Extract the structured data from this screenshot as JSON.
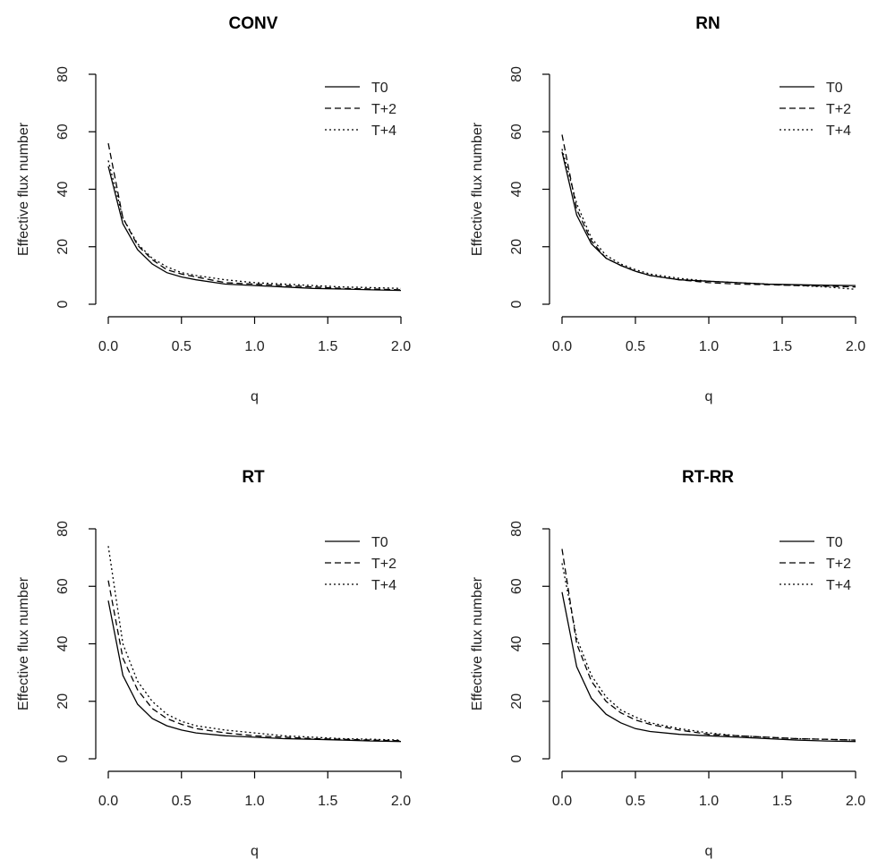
{
  "chart_data": [
    {
      "type": "line",
      "title": "CONV",
      "xlabel": "q",
      "ylabel": "Effective flux number",
      "xlim": [
        0,
        2
      ],
      "ylim": [
        0,
        80
      ],
      "xticks": [
        "0.0",
        "0.5",
        "1.0",
        "1.5",
        "2.0"
      ],
      "yticks": [
        "0",
        "20",
        "40",
        "60",
        "80"
      ],
      "legend": "top-right",
      "x": [
        0,
        0.1,
        0.2,
        0.3,
        0.4,
        0.5,
        0.6,
        0.8,
        1.0,
        1.2,
        1.4,
        1.6,
        1.8,
        2.0
      ],
      "series": [
        {
          "name": "T0",
          "style": "solid",
          "values": [
            48,
            28,
            19,
            14,
            11,
            9.5,
            8.5,
            7,
            6.5,
            6,
            5.5,
            5.3,
            5,
            4.8
          ]
        },
        {
          "name": "T+2",
          "style": "dashed",
          "values": [
            56,
            30,
            20.5,
            15.5,
            12,
            10.5,
            9.5,
            7.5,
            7,
            6.5,
            6,
            5.5,
            5.3,
            5
          ]
        },
        {
          "name": "T+4",
          "style": "dotted",
          "values": [
            50,
            30,
            21,
            16,
            13,
            11,
            10,
            8.5,
            7.5,
            7,
            6.5,
            6,
            5.8,
            5.5
          ]
        }
      ]
    },
    {
      "type": "line",
      "title": "RN",
      "xlabel": "q",
      "ylabel": "Effective flux number",
      "xlim": [
        0,
        2
      ],
      "ylim": [
        0,
        80
      ],
      "xticks": [
        "0.0",
        "0.5",
        "1.0",
        "1.5",
        "2.0"
      ],
      "yticks": [
        "0",
        "20",
        "40",
        "60",
        "80"
      ],
      "legend": "top-right",
      "x": [
        0,
        0.1,
        0.2,
        0.3,
        0.4,
        0.5,
        0.6,
        0.8,
        1.0,
        1.2,
        1.4,
        1.6,
        1.8,
        2.0
      ],
      "series": [
        {
          "name": "T0",
          "style": "solid",
          "values": [
            53,
            31,
            21,
            16,
            13.5,
            11.5,
            10,
            8.5,
            8,
            7.5,
            7,
            6.8,
            6.6,
            6.5
          ]
        },
        {
          "name": "T+2",
          "style": "dashed",
          "values": [
            59,
            33,
            22,
            16,
            13.5,
            11.5,
            10,
            8.5,
            7.5,
            7,
            6.8,
            6.5,
            6.3,
            6
          ]
        },
        {
          "name": "T+4",
          "style": "dotted",
          "values": [
            54,
            35,
            23,
            17,
            14,
            12,
            10.5,
            9,
            8,
            7.5,
            7,
            6.5,
            6,
            5.2
          ]
        }
      ]
    },
    {
      "type": "line",
      "title": "RT",
      "xlabel": "q",
      "ylabel": "Effective flux number",
      "xlim": [
        0,
        2
      ],
      "ylim": [
        0,
        80
      ],
      "xticks": [
        "0.0",
        "0.5",
        "1.0",
        "1.5",
        "2.0"
      ],
      "yticks": [
        "0",
        "20",
        "40",
        "60",
        "80"
      ],
      "legend": "top-right",
      "x": [
        0,
        0.1,
        0.2,
        0.3,
        0.4,
        0.5,
        0.6,
        0.8,
        1.0,
        1.2,
        1.4,
        1.6,
        1.8,
        2.0
      ],
      "series": [
        {
          "name": "T0",
          "style": "solid",
          "values": [
            55,
            29,
            19,
            14,
            11.5,
            10,
            9,
            8,
            7.5,
            7,
            6.8,
            6.5,
            6.2,
            6
          ]
        },
        {
          "name": "T+2",
          "style": "dashed",
          "values": [
            62,
            35,
            24,
            17.5,
            14,
            12,
            10.5,
            9,
            8,
            7.5,
            7,
            6.8,
            6.5,
            6.3
          ]
        },
        {
          "name": "T+4",
          "style": "dotted",
          "values": [
            74,
            40,
            27,
            20,
            15.5,
            13,
            11.5,
            10,
            9,
            8,
            7.5,
            7,
            6.8,
            6.5
          ]
        }
      ]
    },
    {
      "type": "line",
      "title": "RT-RR",
      "xlabel": "q",
      "ylabel": "Effective flux number",
      "xlim": [
        0,
        2
      ],
      "ylim": [
        0,
        80
      ],
      "xticks": [
        "0.0",
        "0.5",
        "1.0",
        "1.5",
        "2.0"
      ],
      "yticks": [
        "0",
        "20",
        "40",
        "60",
        "80"
      ],
      "legend": "top-right",
      "x": [
        0,
        0.1,
        0.2,
        0.3,
        0.4,
        0.5,
        0.6,
        0.8,
        1.0,
        1.2,
        1.4,
        1.6,
        1.8,
        2.0
      ],
      "series": [
        {
          "name": "T0",
          "style": "solid",
          "values": [
            58,
            32,
            21,
            15.5,
            12.5,
            10.5,
            9.5,
            8.5,
            8,
            7.5,
            7,
            6.5,
            6.2,
            6
          ]
        },
        {
          "name": "T+2",
          "style": "dashed",
          "values": [
            73,
            40,
            27,
            20,
            16,
            13.5,
            12,
            10,
            8.5,
            8,
            7.5,
            7,
            6.8,
            6.5
          ]
        },
        {
          "name": "T+4",
          "style": "dotted",
          "values": [
            68,
            42,
            29,
            21.5,
            17,
            14.5,
            12.5,
            10.5,
            9,
            8,
            7.5,
            7,
            6.8,
            6.5
          ]
        }
      ]
    }
  ]
}
